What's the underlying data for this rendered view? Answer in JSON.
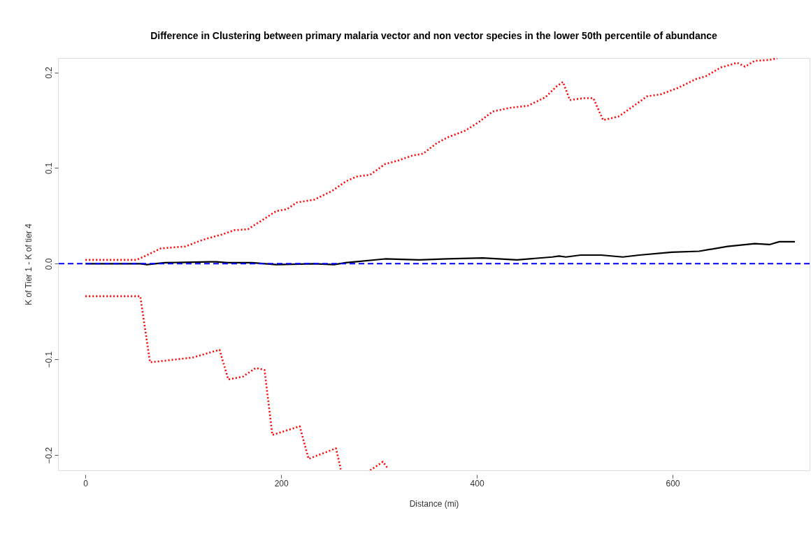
{
  "chart_data": {
    "type": "line",
    "title": "Difference in Clustering between primary malaria vector and non vector species in the lower 50th percentile of abundance",
    "xlabel": "Distance (mi)",
    "ylabel": "K of Tier 1 - K of tier 4",
    "xlim": [
      -28,
      740
    ],
    "ylim": [
      -0.216,
      0.215
    ],
    "xticks": [
      0,
      200,
      400,
      600
    ],
    "yticks": [
      -0.2,
      -0.1,
      {
        "value": 0,
        "label": "0.0"
      },
      0.1,
      0.2
    ],
    "grid": false,
    "marker": "none",
    "series": [
      {
        "color": "#000000",
        "line_style": "solid",
        "x": [
          0,
          56,
          63,
          81,
          127,
          134,
          145,
          170,
          195,
          234,
          254,
          266,
          306,
          341,
          370,
          406,
          441,
          477,
          484,
          491,
          506,
          527,
          549,
          566,
          599,
          627,
          656,
          684,
          699,
          709,
          725
        ],
        "values": [
          0,
          0,
          -0.001,
          0.001,
          0.002,
          0.002,
          0.001,
          0.001,
          -0.001,
          0,
          -0.001,
          0.001,
          0.005,
          0.004,
          0.005,
          0.006,
          0.004,
          0.007,
          0.008,
          0.007,
          0.009,
          0.009,
          0.007,
          0.009,
          0.012,
          0.013,
          0.018,
          0.021,
          0.02,
          0.023,
          0.023
        ]
      },
      {
        "color": "#ff0000",
        "line_style": "dotted",
        "x": [
          0,
          52,
          59,
          77,
          102,
          120,
          141,
          152,
          166,
          183,
          195,
          206,
          216,
          234,
          252,
          266,
          277,
          291,
          306,
          320,
          334,
          345,
          359,
          370,
          388,
          402,
          416,
          434,
          452,
          470,
          481,
          488,
          495,
          509,
          519,
          529,
          545,
          559,
          574,
          588,
          606,
          624,
          634,
          649,
          666,
          674,
          684,
          699,
          707
        ],
        "values": [
          0.004,
          0.004,
          0.007,
          0.016,
          0.018,
          0.025,
          0.031,
          0.035,
          0.036,
          0.047,
          0.055,
          0.057,
          0.064,
          0.067,
          0.076,
          0.086,
          0.091,
          0.093,
          0.104,
          0.108,
          0.113,
          0.115,
          0.126,
          0.132,
          0.139,
          0.148,
          0.159,
          0.163,
          0.165,
          0.174,
          0.185,
          0.19,
          0.171,
          0.173,
          0.173,
          0.15,
          0.154,
          0.164,
          0.175,
          0.177,
          0.184,
          0.193,
          0.196,
          0.205,
          0.21,
          0.206,
          0.212,
          0.213,
          0.2146
        ]
      },
      {
        "color": "#ff0000",
        "line_style": "dotted",
        "x": [
          0,
          56,
          66,
          85,
          110,
          137,
          146,
          161,
          174,
          183,
          191,
          219,
          228,
          256,
          261,
          276,
          291,
          304,
          309
        ],
        "values": [
          -0.034,
          -0.034,
          -0.103,
          -0.101,
          -0.098,
          -0.09,
          -0.121,
          -0.118,
          -0.109,
          -0.111,
          -0.179,
          -0.17,
          -0.204,
          -0.193,
          -0.215,
          null,
          -0.216,
          -0.207,
          -0.214
        ]
      }
    ],
    "ref_lines": [
      {
        "axis": "y",
        "value": 0,
        "color": "#0000ff",
        "line_style": "dashed"
      }
    ]
  }
}
